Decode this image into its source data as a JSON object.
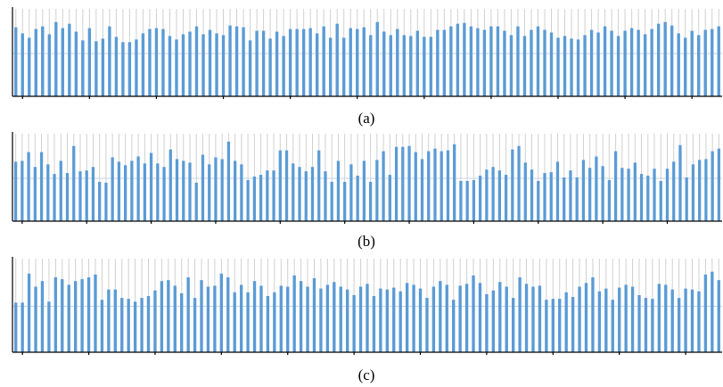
{
  "colors": {
    "bar": "#5b9bd5",
    "grid": "#d0d0d0",
    "reference": "#c6d4e3",
    "axis": "#000000"
  },
  "chart_data": [
    {
      "type": "bar",
      "caption": "(a)",
      "title": "",
      "xlabel": "",
      "ylabel": "",
      "ylim": [
        0,
        1
      ],
      "reference_line": 0.49,
      "grid": "vertical",
      "values": [
        0.79,
        0.72,
        0.67,
        0.77,
        0.8,
        0.71,
        0.85,
        0.78,
        0.83,
        0.74,
        0.64,
        0.78,
        0.63,
        0.66,
        0.8,
        0.68,
        0.62,
        0.62,
        0.65,
        0.72,
        0.77,
        0.78,
        0.77,
        0.69,
        0.65,
        0.71,
        0.74,
        0.8,
        0.71,
        0.76,
        0.72,
        0.7,
        0.81,
        0.8,
        0.79,
        0.64,
        0.75,
        0.75,
        0.66,
        0.74,
        0.69,
        0.77,
        0.77,
        0.77,
        0.78,
        0.72,
        0.8,
        0.67,
        0.83,
        0.67,
        0.78,
        0.77,
        0.79,
        0.7,
        0.85,
        0.74,
        0.7,
        0.77,
        0.7,
        0.69,
        0.75,
        0.68,
        0.68,
        0.76,
        0.76,
        0.8,
        0.83,
        0.84,
        0.8,
        0.78,
        0.76,
        0.8,
        0.8,
        0.75,
        0.7,
        0.8,
        0.69,
        0.76,
        0.8,
        0.76,
        0.73,
        0.67,
        0.69,
        0.66,
        0.65,
        0.7,
        0.76,
        0.73,
        0.8,
        0.75,
        0.69,
        0.75,
        0.78,
        0.76,
        0.71,
        0.77,
        0.83,
        0.85,
        0.81,
        0.72,
        0.67,
        0.75,
        0.7,
        0.76,
        0.77,
        0.8
      ]
    },
    {
      "type": "bar",
      "caption": "(b)",
      "title": "",
      "xlabel": "",
      "ylabel": "",
      "ylim": [
        0,
        1
      ],
      "reference_line": 0.49,
      "grid": "vertical",
      "values": [
        0.68,
        0.69,
        0.79,
        0.62,
        0.79,
        0.65,
        0.54,
        0.69,
        0.55,
        0.86,
        0.57,
        0.58,
        0.62,
        0.45,
        0.44,
        0.73,
        0.68,
        0.64,
        0.69,
        0.74,
        0.66,
        0.78,
        0.66,
        0.62,
        0.82,
        0.71,
        0.69,
        0.67,
        0.44,
        0.76,
        0.65,
        0.73,
        0.71,
        0.91,
        0.69,
        0.65,
        0.47,
        0.51,
        0.53,
        0.58,
        0.58,
        0.81,
        0.81,
        0.66,
        0.62,
        0.57,
        0.62,
        0.81,
        0.57,
        0.45,
        0.69,
        0.45,
        0.65,
        0.52,
        0.69,
        0.45,
        0.7,
        0.8,
        0.53,
        0.85,
        0.85,
        0.86,
        0.79,
        0.71,
        0.8,
        0.83,
        0.8,
        0.81,
        0.88,
        0.46,
        0.46,
        0.47,
        0.52,
        0.59,
        0.62,
        0.58,
        0.53,
        0.82,
        0.86,
        0.67,
        0.59,
        0.46,
        0.55,
        0.56,
        0.68,
        0.5,
        0.58,
        0.5,
        0.7,
        0.61,
        0.74,
        0.63,
        0.47,
        0.8,
        0.61,
        0.6,
        0.67,
        0.54,
        0.52,
        0.6,
        0.46,
        0.6,
        0.68,
        0.87,
        0.5,
        0.65,
        0.7,
        0.71,
        0.8,
        0.83
      ]
    },
    {
      "type": "bar",
      "caption": "(c)",
      "title": "",
      "xlabel": "",
      "ylabel": "",
      "ylim": [
        0,
        1
      ],
      "reference_line": 0.49,
      "grid": "vertical",
      "values": [
        0.53,
        0.53,
        0.84,
        0.7,
        0.76,
        0.54,
        0.8,
        0.78,
        0.72,
        0.76,
        0.78,
        0.8,
        0.83,
        0.56,
        0.67,
        0.67,
        0.58,
        0.57,
        0.54,
        0.58,
        0.6,
        0.66,
        0.76,
        0.77,
        0.71,
        0.63,
        0.8,
        0.58,
        0.77,
        0.7,
        0.71,
        0.84,
        0.8,
        0.64,
        0.72,
        0.64,
        0.76,
        0.71,
        0.6,
        0.64,
        0.71,
        0.7,
        0.82,
        0.76,
        0.7,
        0.79,
        0.68,
        0.72,
        0.75,
        0.7,
        0.67,
        0.61,
        0.7,
        0.73,
        0.6,
        0.68,
        0.67,
        0.69,
        0.65,
        0.74,
        0.72,
        0.68,
        0.58,
        0.7,
        0.76,
        0.72,
        0.56,
        0.71,
        0.73,
        0.82,
        0.74,
        0.62,
        0.66,
        0.75,
        0.7,
        0.58,
        0.8,
        0.73,
        0.7,
        0.71,
        0.56,
        0.57,
        0.57,
        0.64,
        0.59,
        0.7,
        0.74,
        0.8,
        0.65,
        0.68,
        0.56,
        0.69,
        0.72,
        0.7,
        0.61,
        0.58,
        0.57,
        0.73,
        0.72,
        0.67,
        0.58,
        0.68,
        0.67,
        0.65,
        0.83,
        0.86,
        0.77
      ]
    }
  ]
}
